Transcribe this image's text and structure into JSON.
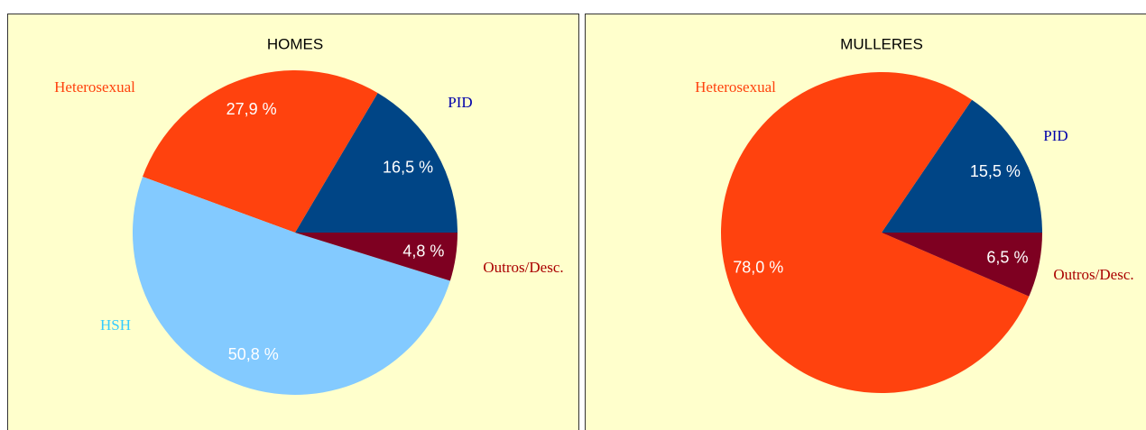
{
  "chart_data": [
    {
      "type": "pie",
      "title": "HOMES",
      "categories": [
        "PID",
        "Heterosexual",
        "HSH",
        "Outros/Desc."
      ],
      "values": [
        16.5,
        27.9,
        50.8,
        4.8
      ],
      "value_labels": [
        "16,5 %",
        "27,9 %",
        "50,8 %",
        "4,8 %"
      ],
      "colors": [
        "#004586",
        "#ff420e",
        "#83caff",
        "#7e0021"
      ],
      "label_colors": [
        "#0000aa",
        "#ff420e",
        "#33ccff",
        "#aa0000"
      ]
    },
    {
      "type": "pie",
      "title": "MULLERES",
      "categories": [
        "PID",
        "Heterosexual",
        "Outros/Desc."
      ],
      "values": [
        15.5,
        78.0,
        6.5
      ],
      "value_labels": [
        "15,5 %",
        "78,0 %",
        "6,5 %"
      ],
      "colors": [
        "#004586",
        "#ff420e",
        "#7e0021"
      ],
      "label_colors": [
        "#0000aa",
        "#ff420e",
        "#aa0000"
      ]
    }
  ]
}
